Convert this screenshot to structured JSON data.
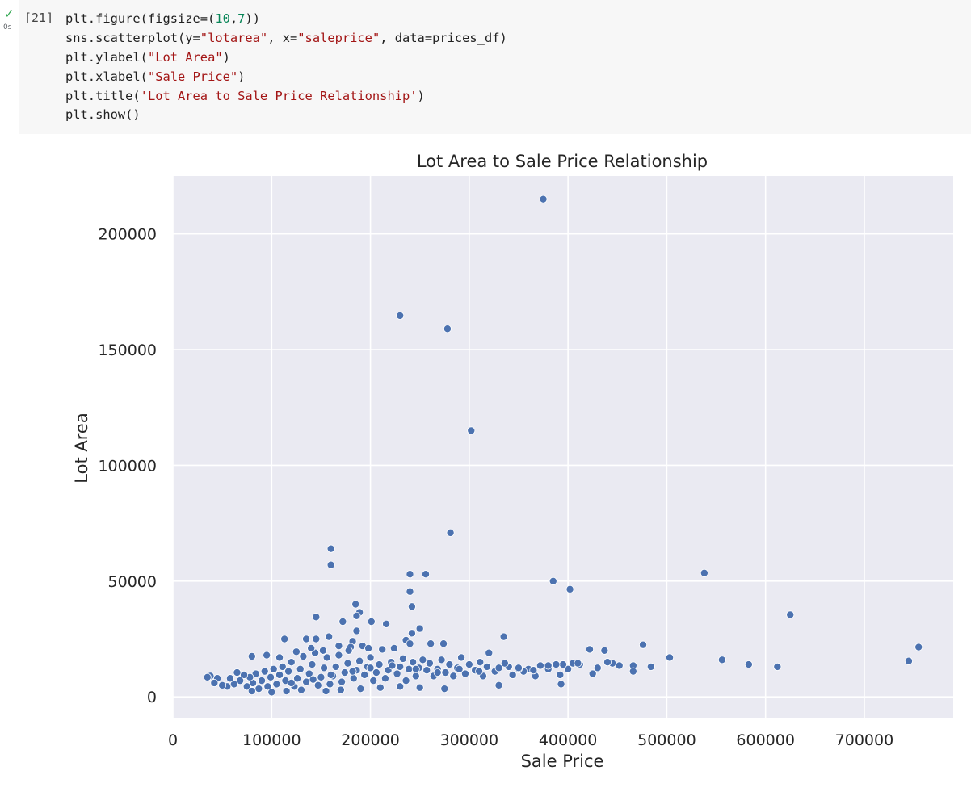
{
  "cell": {
    "status_icon": "check-icon",
    "exec_time": "0s",
    "exec_count": "[21]",
    "lines": [
      [
        {
          "t": "plt.figure(figsize=("
        },
        {
          "t": "10",
          "c": "num"
        },
        {
          "t": ","
        },
        {
          "t": "7",
          "c": "num"
        },
        {
          "t": "))"
        }
      ],
      [
        {
          "t": "sns.scatterplot(y="
        },
        {
          "t": "\"lotarea\"",
          "c": "str"
        },
        {
          "t": ", x="
        },
        {
          "t": "\"saleprice\"",
          "c": "str"
        },
        {
          "t": ", data=prices_df)"
        }
      ],
      [
        {
          "t": "plt.ylabel("
        },
        {
          "t": "\"Lot Area\"",
          "c": "str"
        },
        {
          "t": ")"
        }
      ],
      [
        {
          "t": "plt.xlabel("
        },
        {
          "t": "\"Sale Price\"",
          "c": "str"
        },
        {
          "t": ")"
        }
      ],
      [
        {
          "t": "plt.title("
        },
        {
          "t": "'Lot Area to Sale Price Relationship'",
          "c": "str"
        },
        {
          "t": ")"
        }
      ],
      [
        {
          "t": "plt.show()"
        }
      ]
    ]
  },
  "colors": {
    "point": "#4c72b0",
    "axes_bg": "#eaeaf2",
    "grid": "#ffffff"
  },
  "chart_data": {
    "type": "scatter",
    "title": "Lot Area to Sale Price Relationship",
    "xlabel": "Sale Price",
    "ylabel": "Lot Area",
    "xlim": [
      0,
      790000
    ],
    "ylim": [
      -9000,
      225000
    ],
    "xticks": [
      0,
      100000,
      200000,
      300000,
      400000,
      500000,
      600000,
      700000
    ],
    "xtick_labels": [
      "0",
      "100000",
      "200000",
      "300000",
      "400000",
      "500000",
      "600000",
      "700000"
    ],
    "yticks": [
      0,
      50000,
      100000,
      150000,
      200000
    ],
    "ytick_labels": [
      "0",
      "50000",
      "100000",
      "150000",
      "200000"
    ],
    "grid": true,
    "points": [
      [
        375000,
        215000
      ],
      [
        230000,
        164700
      ],
      [
        278000,
        159000
      ],
      [
        302000,
        115000
      ],
      [
        281000,
        70900
      ],
      [
        160000,
        64000
      ],
      [
        160000,
        57000
      ],
      [
        240000,
        53000
      ],
      [
        256000,
        53000
      ],
      [
        385000,
        50000
      ],
      [
        402000,
        46500
      ],
      [
        538000,
        53500
      ],
      [
        240000,
        45500
      ],
      [
        185000,
        40000
      ],
      [
        242000,
        39000
      ],
      [
        189000,
        36500
      ],
      [
        186000,
        35000
      ],
      [
        145000,
        34500
      ],
      [
        172000,
        32500
      ],
      [
        201000,
        32500
      ],
      [
        216000,
        31500
      ],
      [
        250000,
        29500
      ],
      [
        186000,
        28500
      ],
      [
        242000,
        27500
      ],
      [
        335000,
        26000
      ],
      [
        113000,
        25000
      ],
      [
        135000,
        25000
      ],
      [
        145000,
        25000
      ],
      [
        158000,
        26000
      ],
      [
        182000,
        24000
      ],
      [
        236000,
        24500
      ],
      [
        240000,
        23000
      ],
      [
        274000,
        23000
      ],
      [
        476000,
        22500
      ],
      [
        261000,
        23000
      ],
      [
        625000,
        35500
      ],
      [
        755000,
        21500
      ],
      [
        745000,
        15500
      ],
      [
        556000,
        16000
      ],
      [
        583000,
        14000
      ],
      [
        612000,
        13000
      ],
      [
        503000,
        17000
      ],
      [
        484000,
        13000
      ],
      [
        466000,
        13500
      ],
      [
        466000,
        11000
      ],
      [
        452000,
        13500
      ],
      [
        445000,
        14500
      ],
      [
        440000,
        15000
      ],
      [
        437000,
        20000
      ],
      [
        430000,
        12500
      ],
      [
        425000,
        10000
      ],
      [
        422000,
        20500
      ],
      [
        412000,
        14000
      ],
      [
        405000,
        14500
      ],
      [
        400000,
        12000
      ],
      [
        395000,
        14000
      ],
      [
        392000,
        9500
      ],
      [
        393000,
        5500
      ],
      [
        388000,
        14000
      ],
      [
        380000,
        12000
      ],
      [
        372000,
        13500
      ],
      [
        367000,
        9000
      ],
      [
        360000,
        12000
      ],
      [
        355000,
        11000
      ],
      [
        350000,
        12000
      ],
      [
        344000,
        9500
      ],
      [
        340000,
        13000
      ],
      [
        336000,
        14500
      ],
      [
        330000,
        5000
      ],
      [
        326000,
        11000
      ],
      [
        320000,
        19000
      ],
      [
        318000,
        13000
      ],
      [
        314000,
        9000
      ],
      [
        311000,
        15000
      ],
      [
        306000,
        11500
      ],
      [
        300000,
        14000
      ],
      [
        296000,
        10000
      ],
      [
        292000,
        17000
      ],
      [
        288000,
        12500
      ],
      [
        284000,
        9000
      ],
      [
        280000,
        14000
      ],
      [
        276000,
        10500
      ],
      [
        272000,
        16000
      ],
      [
        268000,
        12000
      ],
      [
        264000,
        9000
      ],
      [
        260000,
        14500
      ],
      [
        257000,
        11500
      ],
      [
        253000,
        16000
      ],
      [
        249000,
        12500
      ],
      [
        246000,
        9000
      ],
      [
        243000,
        15000
      ],
      [
        239000,
        12000
      ],
      [
        236000,
        7000
      ],
      [
        233000,
        16500
      ],
      [
        230000,
        13000
      ],
      [
        227000,
        10000
      ],
      [
        224000,
        21000
      ],
      [
        221000,
        15000
      ],
      [
        218000,
        11500
      ],
      [
        215000,
        8000
      ],
      [
        212000,
        20500
      ],
      [
        209000,
        14000
      ],
      [
        206000,
        10500
      ],
      [
        203000,
        7000
      ],
      [
        200000,
        17000
      ],
      [
        197000,
        13000
      ],
      [
        194000,
        9500
      ],
      [
        192000,
        22000
      ],
      [
        189000,
        15500
      ],
      [
        186000,
        11500
      ],
      [
        183000,
        8000
      ],
      [
        180000,
        21500
      ],
      [
        177000,
        14500
      ],
      [
        174000,
        10500
      ],
      [
        171000,
        6500
      ],
      [
        168000,
        18000
      ],
      [
        165000,
        13000
      ],
      [
        162000,
        9000
      ],
      [
        159000,
        5500
      ],
      [
        156000,
        17000
      ],
      [
        153000,
        12500
      ],
      [
        150000,
        8500
      ],
      [
        147000,
        5000
      ],
      [
        144000,
        19000
      ],
      [
        141000,
        14000
      ],
      [
        138000,
        10000
      ],
      [
        135000,
        6500
      ],
      [
        132000,
        17500
      ],
      [
        129000,
        12000
      ],
      [
        126000,
        8000
      ],
      [
        123000,
        4500
      ],
      [
        120000,
        15000
      ],
      [
        117000,
        11000
      ],
      [
        114000,
        7000
      ],
      [
        111000,
        13000
      ],
      [
        108000,
        9500
      ],
      [
        105000,
        5500
      ],
      [
        102000,
        12000
      ],
      [
        99000,
        8500
      ],
      [
        96000,
        4500
      ],
      [
        93000,
        11000
      ],
      [
        90000,
        7000
      ],
      [
        87000,
        3500
      ],
      [
        84000,
        10000
      ],
      [
        81000,
        6000
      ],
      [
        78000,
        8500
      ],
      [
        75000,
        4500
      ],
      [
        72000,
        9500
      ],
      [
        68000,
        7000
      ],
      [
        65000,
        10500
      ],
      [
        62000,
        5500
      ],
      [
        58000,
        8000
      ],
      [
        55000,
        4500
      ],
      [
        50000,
        5000
      ],
      [
        45000,
        8000
      ],
      [
        42000,
        6000
      ],
      [
        38000,
        9000
      ],
      [
        35000,
        8500
      ],
      [
        80000,
        17500
      ],
      [
        95000,
        18000
      ],
      [
        108000,
        17000
      ],
      [
        125000,
        19500
      ],
      [
        140000,
        21000
      ],
      [
        152000,
        20000
      ],
      [
        168000,
        22000
      ],
      [
        178000,
        20000
      ],
      [
        198000,
        21000
      ],
      [
        155000,
        2500
      ],
      [
        170000,
        3000
      ],
      [
        190000,
        3500
      ],
      [
        210000,
        4000
      ],
      [
        230000,
        4500
      ],
      [
        250000,
        4000
      ],
      [
        275000,
        3500
      ],
      [
        100000,
        2000
      ],
      [
        115000,
        2500
      ],
      [
        130000,
        3000
      ],
      [
        80000,
        2500
      ],
      [
        120000,
        6000
      ],
      [
        142000,
        7500
      ],
      [
        160000,
        9500
      ],
      [
        182000,
        11000
      ],
      [
        200000,
        12500
      ],
      [
        222000,
        13500
      ],
      [
        246000,
        12000
      ],
      [
        268000,
        10500
      ],
      [
        290000,
        12000
      ],
      [
        310000,
        11000
      ],
      [
        330000,
        12500
      ],
      [
        350000,
        12500
      ],
      [
        365000,
        11500
      ],
      [
        380000,
        13500
      ],
      [
        410000,
        14500
      ]
    ]
  }
}
